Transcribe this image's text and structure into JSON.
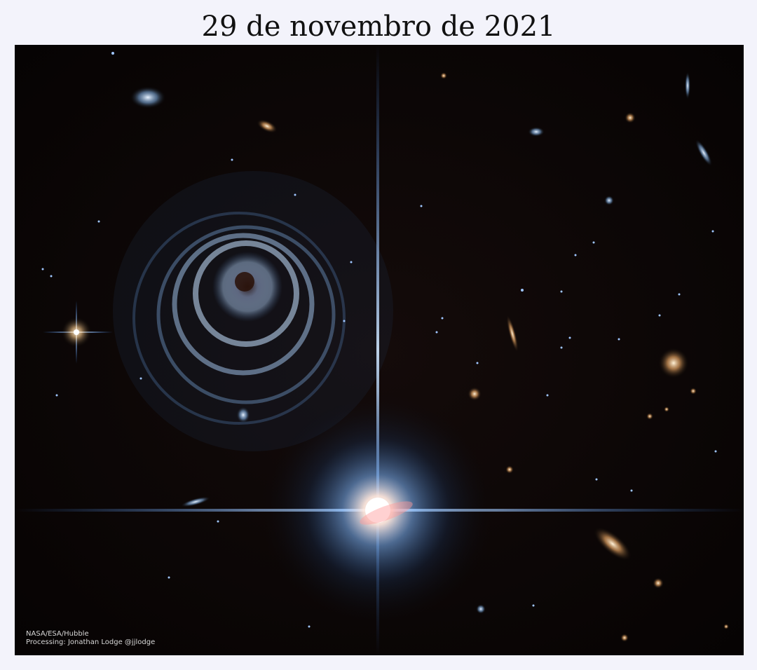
{
  "title": "29 de novembro de 2021",
  "photo": {
    "credit_line_1": "NASA/ESA/Hubble",
    "credit_line_2": "Processing: Jonathan Lodge @jjlodge",
    "background_color": "#0b0606",
    "star_color": "#eaf4ff",
    "glow_color": "#6fb4ff",
    "galaxy_color": "#f0b070"
  }
}
